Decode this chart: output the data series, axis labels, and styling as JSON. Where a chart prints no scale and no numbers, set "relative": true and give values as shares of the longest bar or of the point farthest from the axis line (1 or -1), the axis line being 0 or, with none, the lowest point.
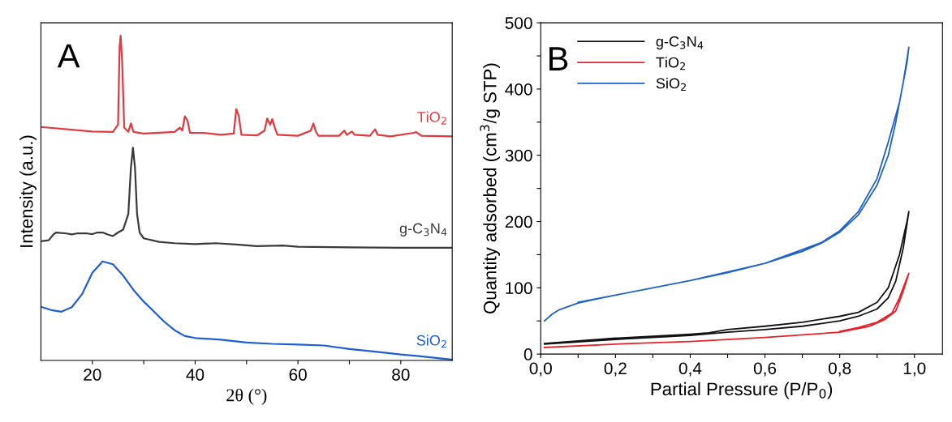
{
  "chart_data": [
    {
      "type": "line",
      "xlabel": "2θ (°)",
      "ylabel": "Intensity (a.u.)",
      "relative": true,
      "tick_labels": "x",
      "legend": false,
      "grid": false,
      "marker": "none",
      "line_style": "solid",
      "annotations": [
        "A"
      ],
      "xlim": [
        10,
        90
      ],
      "xticks": [
        20,
        {
          "value": 30,
          "label": null
        },
        40,
        {
          "value": 50,
          "label": null
        },
        60,
        {
          "value": 70,
          "label": null
        },
        80
      ],
      "series": [
        {
          "name": "TiO$_{2}$",
          "color": "#e0393f",
          "x": [
            10,
            20,
            24,
            25,
            25.3,
            25.5,
            25.8,
            26.2,
            27,
            27.5,
            28,
            30,
            36,
            37,
            37.5,
            38,
            38.5,
            39,
            41.5,
            45,
            47.5,
            48,
            48.5,
            49,
            52,
            53.5,
            54,
            54.6,
            55,
            55.5,
            56,
            60,
            62.5,
            63,
            63.5,
            64,
            68,
            69,
            69.5,
            70.5,
            71,
            74,
            75,
            75.5,
            78,
            82.5,
            83,
            84,
            90
          ],
          "values": [
            0.719,
            0.705,
            0.704,
            0.726,
            0.965,
            1.0,
            0.92,
            0.717,
            0.704,
            0.73,
            0.704,
            0.699,
            0.704,
            0.717,
            0.708,
            0.752,
            0.739,
            0.701,
            0.701,
            0.695,
            0.699,
            0.774,
            0.752,
            0.695,
            0.693,
            0.708,
            0.745,
            0.726,
            0.743,
            0.717,
            0.695,
            0.692,
            0.708,
            0.73,
            0.704,
            0.692,
            0.692,
            0.708,
            0.695,
            0.705,
            0.695,
            0.692,
            0.712,
            0.695,
            0.69,
            0.701,
            0.703,
            0.692,
            0.69
          ]
        },
        {
          "name": "g-C$_{3}$N$_{4}$",
          "color": "#3a3a3a",
          "x": [
            10,
            11.5,
            12.5,
            13,
            15,
            16,
            17,
            19,
            20,
            21,
            22,
            23,
            24,
            25,
            26,
            27,
            27.5,
            27.9,
            28.3,
            28.7,
            29.2,
            30,
            33,
            36,
            40,
            44,
            48,
            52,
            57,
            60,
            70,
            80,
            90
          ],
          "values": [
            0.367,
            0.37,
            0.389,
            0.394,
            0.391,
            0.388,
            0.391,
            0.391,
            0.389,
            0.394,
            0.394,
            0.388,
            0.383,
            0.394,
            0.403,
            0.451,
            0.593,
            0.655,
            0.593,
            0.451,
            0.394,
            0.376,
            0.365,
            0.361,
            0.358,
            0.361,
            0.357,
            0.352,
            0.354,
            0.35,
            0.348,
            0.347,
            0.347
          ]
        },
        {
          "name": "SiO$_{2}$",
          "color": "#1f5fd6",
          "x": [
            10,
            12,
            14,
            16,
            18,
            20,
            22,
            24,
            26,
            28,
            30,
            32,
            34,
            36,
            38,
            40,
            45,
            50,
            55,
            60,
            65,
            70,
            75,
            80,
            85,
            90
          ],
          "values": [
            0.165,
            0.155,
            0.15,
            0.164,
            0.204,
            0.27,
            0.305,
            0.296,
            0.261,
            0.217,
            0.181,
            0.15,
            0.119,
            0.093,
            0.075,
            0.069,
            0.064,
            0.055,
            0.051,
            0.049,
            0.046,
            0.035,
            0.027,
            0.018,
            0.011,
            0.002
          ]
        }
      ]
    },
    {
      "type": "line",
      "xlabel": "Partial Pressure (P/P$_{0}$)",
      "ylabel": "Quantity adsorbed (cm$^{3}$/g STP)",
      "legend": "top left",
      "grid": false,
      "marker": "none",
      "line_style": "solid",
      "annotations": [
        "B"
      ],
      "xlim": [
        0,
        1.075
      ],
      "xticks": [
        {
          "value": 0,
          "label": "0,0"
        },
        {
          "value": 0.1,
          "label": null
        },
        {
          "value": 0.2,
          "label": "0,2"
        },
        {
          "value": 0.3,
          "label": null
        },
        {
          "value": 0.4,
          "label": "0,4"
        },
        {
          "value": 0.5,
          "label": null
        },
        {
          "value": 0.6,
          "label": "0,6"
        },
        {
          "value": 0.7,
          "label": null
        },
        {
          "value": 0.8,
          "label": "0,8"
        },
        {
          "value": 0.9,
          "label": null
        },
        {
          "value": 1.0,
          "label": "1,0"
        }
      ],
      "ylim": [
        0,
        500
      ],
      "yticks": [
        0,
        {
          "value": 50,
          "label": null
        },
        100,
        {
          "value": 150,
          "label": null
        },
        200,
        {
          "value": 250,
          "label": null
        },
        300,
        {
          "value": 350,
          "label": null
        },
        400,
        {
          "value": 450,
          "label": null
        },
        500
      ],
      "series": [
        {
          "name": "g-C$_{3}$N$_{4}$",
          "color": "#111111",
          "x": [
            0.01,
            0.2,
            0.4,
            0.5,
            0.6,
            0.7,
            0.8,
            0.85,
            0.9,
            0.93,
            0.95,
            0.97,
            0.985,
            0.98,
            0.96,
            0.93,
            0.9,
            0.85,
            0.8,
            0.7,
            0.6,
            0.5,
            0.45,
            0.4,
            0.2,
            0.01
          ],
          "values": [
            15,
            22,
            28,
            33,
            37,
            42,
            50,
            57,
            68,
            85,
            110,
            160,
            215,
            200,
            150,
            100,
            78,
            63,
            57,
            48,
            42,
            37,
            32,
            30,
            24,
            16
          ]
        },
        {
          "name": "TiO$_{2}$",
          "color": "#e8202a",
          "x": [
            0.01,
            0.2,
            0.4,
            0.6,
            0.8,
            0.88,
            0.92,
            0.95,
            0.97,
            0.985,
            0.98,
            0.96,
            0.94,
            0.9,
            0.85,
            0.8
          ],
          "values": [
            10,
            15,
            19,
            25,
            33,
            42,
            52,
            65,
            95,
            122,
            115,
            85,
            62,
            48,
            40,
            34
          ]
        },
        {
          "name": "SiO$_{2}$",
          "color": "#1f62c8",
          "x": [
            0.01,
            0.03,
            0.05,
            0.1,
            0.15,
            0.2,
            0.3,
            0.4,
            0.5,
            0.6,
            0.7,
            0.75,
            0.8,
            0.85,
            0.9,
            0.93,
            0.95,
            0.97,
            0.985,
            0.98,
            0.96,
            0.93,
            0.9,
            0.85,
            0.8,
            0.75,
            0.6,
            0.4,
            0.2,
            0.1
          ],
          "values": [
            50,
            60,
            67,
            77,
            83,
            89,
            100,
            111,
            123,
            137,
            155,
            167,
            184,
            210,
            255,
            300,
            350,
            410,
            463,
            440,
            380,
            320,
            265,
            215,
            186,
            168,
            137,
            111,
            89,
            78
          ]
        }
      ]
    }
  ]
}
